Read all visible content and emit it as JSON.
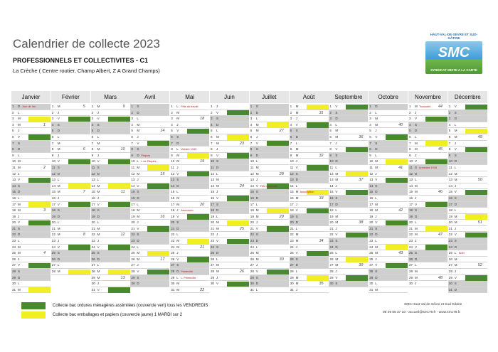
{
  "header": {
    "title": "Calendrier de collecte 2023",
    "subtitle": "PROFESSIONNELS ET COLLECTIVITES - C1",
    "location": "La Crèche ( Centre routier, Champ Albert, Z A Grand Champs)"
  },
  "logo": {
    "top_text": "HAUT-VAL-DE-SEVRE ET SUD-GÂTINE",
    "main_text": "SMC",
    "bottom_text": "SYNDICAT MIXTE A LA CARTE"
  },
  "colors": {
    "green": "#4a8a2e",
    "yellow": "#f2ee24",
    "weekend": "#cfcfcf"
  },
  "months": [
    "Janvier",
    "Février",
    "Mars",
    "Avril",
    "Mai",
    "Juin",
    "Juillet",
    "Août",
    "Septembre",
    "Octobre",
    "Novembre",
    "Décembre"
  ],
  "holidays": [
    {
      "date": "2023-01-01",
      "label": "Jour de l'an"
    },
    {
      "date": "2023-04-09",
      "label": "Pâques"
    },
    {
      "date": "2023-04-10",
      "label": "L de Pâques"
    },
    {
      "date": "2023-05-01",
      "label": "Fête du travail"
    },
    {
      "date": "2023-05-08",
      "label": "Victoire 1945"
    },
    {
      "date": "2023-05-18",
      "label": "Ascension"
    },
    {
      "date": "2023-05-28",
      "label": "Pentecôte"
    },
    {
      "date": "2023-05-29",
      "label": "L. Pentecôte"
    },
    {
      "date": "2023-07-14",
      "label": "Fête nationale"
    },
    {
      "date": "2023-08-15",
      "label": "Assomption"
    },
    {
      "date": "2023-11-01",
      "label": "Toussaint"
    },
    {
      "date": "2023-11-11",
      "label": "Armistice 1918"
    },
    {
      "date": "2023-12-25",
      "label": "Noël"
    }
  ],
  "collection_days": {
    "green": "Friday",
    "yellow": "Tuesday, every other week"
  },
  "legend": [
    {
      "color": "green",
      "label": "Collecte bac ordures ménagères assimilées (couvercle vert) tous les VENDREDIS"
    },
    {
      "color": "yellow",
      "label": "Collecte bac emballages et papiers (couvercle jaune) 1 MARDI sur 2"
    }
  ],
  "footer": {
    "org": "SMC Haut Val de Sèvre et Sud Gâtine",
    "contact": "05 49 05 37 10 - accueil@smc79.fr - www.smc79.fr"
  }
}
